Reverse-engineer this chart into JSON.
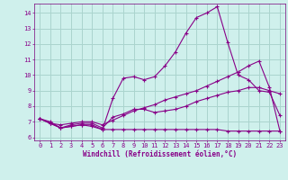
{
  "xlabel": "Windchill (Refroidissement éolien,°C)",
  "background_color": "#cff0ec",
  "grid_color": "#aad4ce",
  "line_color": "#880088",
  "spine_color": "#7a007a",
  "x_ticks": [
    0,
    1,
    2,
    3,
    4,
    5,
    6,
    7,
    8,
    9,
    10,
    11,
    12,
    13,
    14,
    15,
    16,
    17,
    18,
    19,
    20,
    21,
    22,
    23
  ],
  "y_ticks": [
    6,
    7,
    8,
    9,
    10,
    11,
    12,
    13,
    14
  ],
  "ylim": [
    5.8,
    14.6
  ],
  "xlim": [
    -0.5,
    23.5
  ],
  "series": [
    {
      "x": [
        0,
        1,
        2,
        3,
        4,
        5,
        6,
        7,
        8,
        9,
        10,
        11,
        12,
        13,
        14,
        15,
        16,
        17,
        18,
        19,
        20,
        21,
        22,
        23
      ],
      "y": [
        7.2,
        6.9,
        6.6,
        6.8,
        6.9,
        6.9,
        6.6,
        7.3,
        7.5,
        7.8,
        7.8,
        7.6,
        7.7,
        7.8,
        8.0,
        8.3,
        8.5,
        8.7,
        8.9,
        9.0,
        9.2,
        9.2,
        9.0,
        8.8
      ]
    },
    {
      "x": [
        0,
        1,
        2,
        3,
        4,
        5,
        6,
        7,
        8,
        9,
        10,
        11,
        12,
        13,
        14,
        15,
        16,
        17,
        18,
        19,
        20,
        21,
        22,
        23
      ],
      "y": [
        7.2,
        6.9,
        6.8,
        6.9,
        7.0,
        7.0,
        6.8,
        7.1,
        7.4,
        7.7,
        7.9,
        8.1,
        8.4,
        8.6,
        8.8,
        9.0,
        9.3,
        9.6,
        9.9,
        10.2,
        10.6,
        10.9,
        9.2,
        6.4
      ]
    },
    {
      "x": [
        0,
        1,
        2,
        3,
        4,
        5,
        6,
        7,
        8,
        9,
        10,
        11,
        12,
        13,
        14,
        15,
        16,
        17,
        18,
        19,
        20,
        21,
        22,
        23
      ],
      "y": [
        7.2,
        7.0,
        6.6,
        6.7,
        6.8,
        6.8,
        6.5,
        8.5,
        9.8,
        9.9,
        9.7,
        9.9,
        10.6,
        11.5,
        12.7,
        13.7,
        14.0,
        14.4,
        12.1,
        10.0,
        9.7,
        9.0,
        8.9,
        7.4
      ]
    },
    {
      "x": [
        0,
        1,
        2,
        3,
        4,
        5,
        6,
        7,
        8,
        9,
        10,
        11,
        12,
        13,
        14,
        15,
        16,
        17,
        18,
        19,
        20,
        21,
        22,
        23
      ],
      "y": [
        7.2,
        6.9,
        6.6,
        6.7,
        6.8,
        6.7,
        6.5,
        6.5,
        6.5,
        6.5,
        6.5,
        6.5,
        6.5,
        6.5,
        6.5,
        6.5,
        6.5,
        6.5,
        6.4,
        6.4,
        6.4,
        6.4,
        6.4,
        6.4
      ]
    }
  ]
}
